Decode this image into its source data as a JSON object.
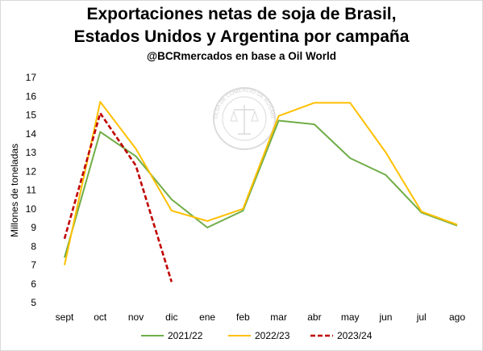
{
  "title_line1": "Exportaciones netas de soja de Brasil,",
  "title_line2": "Estados Unidos y Argentina por campaña",
  "subtitle": "@BCRmercados en base a Oil World",
  "watermark_text": "BOLSA DE COMERCIO DE ROSARIO",
  "colors": {
    "series_2021_22": "#70ad47",
    "series_2022_23": "#ffc000",
    "series_2023_24": "#c00000"
  },
  "chart_data": {
    "type": "line",
    "categories": [
      "sept",
      "oct",
      "nov",
      "dic",
      "ene",
      "feb",
      "mar",
      "abr",
      "may",
      "jun",
      "jul",
      "ago"
    ],
    "ylabel": "Millones de toneladas",
    "xlabel": "",
    "ylim": [
      5,
      17
    ],
    "yticks": [
      5,
      6,
      7,
      8,
      9,
      10,
      11,
      12,
      13,
      14,
      15,
      16,
      17
    ],
    "grid": false,
    "legend_position": "bottom",
    "series": [
      {
        "name": "2021/22",
        "style": "solid",
        "values": [
          7.4,
          14.1,
          12.8,
          10.5,
          9.0,
          9.9,
          14.7,
          14.5,
          12.7,
          11.8,
          9.8,
          9.1
        ]
      },
      {
        "name": "2022/23",
        "style": "solid",
        "values": [
          7.0,
          15.7,
          13.2,
          9.9,
          9.35,
          10.0,
          14.95,
          15.65,
          15.65,
          13.0,
          9.85,
          9.15
        ]
      },
      {
        "name": "2023/24",
        "style": "dashed",
        "values": [
          8.4,
          15.1,
          12.3,
          6.1,
          null,
          null,
          null,
          null,
          null,
          null,
          null,
          null
        ]
      }
    ]
  }
}
